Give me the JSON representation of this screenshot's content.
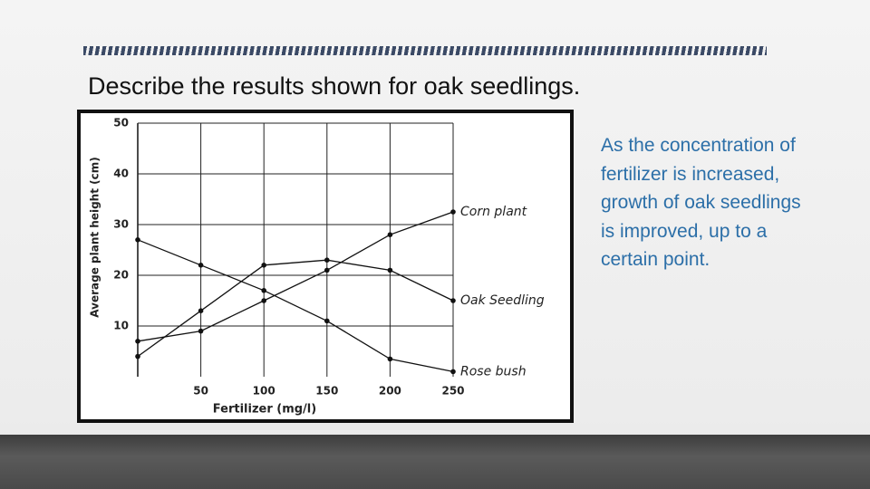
{
  "title": "Describe the results shown for oak seedlings.",
  "body": {
    "lines": [
      "As the concentration of",
      "fertilizer is increased,",
      "growth of oak seedlings",
      "is improved, up to a",
      "certain point."
    ]
  },
  "chart_data": {
    "type": "line",
    "x_label": "Fertilizer (mg/l)",
    "y_label": "Average plant height (cm)",
    "x": [
      0,
      50,
      100,
      150,
      200,
      250
    ],
    "xlim": [
      0,
      250
    ],
    "xticks": [
      50,
      100,
      150,
      200,
      250
    ],
    "ylim": [
      0,
      50
    ],
    "yticks": [
      10,
      20,
      30,
      40,
      50
    ],
    "grid": true,
    "series": [
      {
        "name": "Corn plant",
        "color": "#111111",
        "values": [
          7,
          9,
          15,
          21,
          28,
          32.5
        ]
      },
      {
        "name": "Oak Seedling",
        "color": "#111111",
        "values": [
          4,
          13,
          22,
          23,
          21,
          15
        ]
      },
      {
        "name": "Rose bush",
        "color": "#111111",
        "values": [
          27,
          22,
          17,
          11,
          3.5,
          1
        ]
      }
    ]
  }
}
